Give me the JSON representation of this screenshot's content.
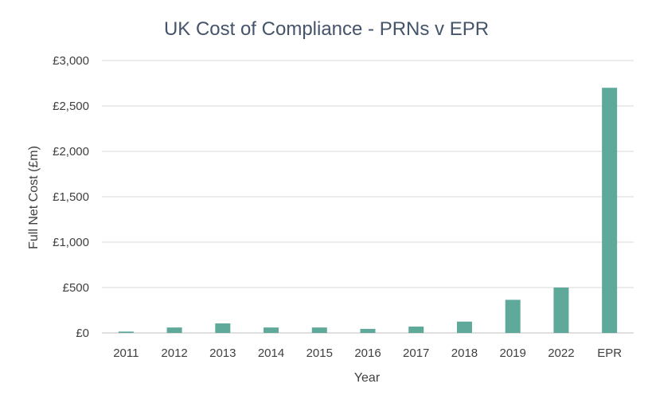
{
  "chart_data": {
    "type": "bar",
    "title": "UK Cost of Compliance - PRNs v EPR",
    "xlabel": "Year",
    "ylabel": "Full Net Cost (£m)",
    "categories": [
      "2011",
      "2012",
      "2013",
      "2014",
      "2015",
      "2016",
      "2017",
      "2018",
      "2019",
      "2022",
      "EPR"
    ],
    "values": [
      15,
      60,
      105,
      60,
      60,
      45,
      70,
      125,
      365,
      500,
      2700
    ],
    "ylim": [
      0,
      3000
    ],
    "yticks": [
      0,
      500,
      1000,
      1500,
      2000,
      2500,
      3000
    ],
    "ytick_labels": [
      "£0",
      "£500",
      "£1,000",
      "£1,500",
      "£2,000",
      "£2,500",
      "£3,000"
    ],
    "grid": true,
    "legend": "none",
    "bar_color": "#5fa99b"
  }
}
